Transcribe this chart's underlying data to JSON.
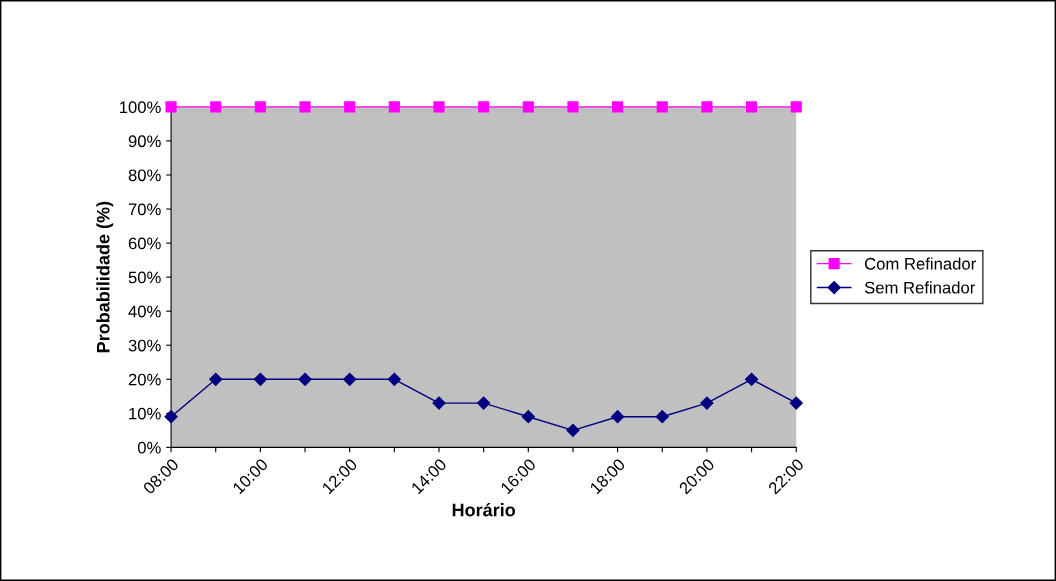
{
  "chart_data": {
    "type": "line",
    "xlabel": "Horário",
    "ylabel": "Probabilidade (%)",
    "categories": [
      "08:00",
      null,
      "10:00",
      null,
      "12:00",
      null,
      "14:00",
      null,
      "16:00",
      null,
      "18:00",
      null,
      "20:00",
      null,
      "22:00"
    ],
    "series": [
      {
        "name": "Com Refinador",
        "color": "#ff00ff",
        "marker": "square",
        "values": [
          100,
          100,
          100,
          100,
          100,
          100,
          100,
          100,
          100,
          100,
          100,
          100,
          100,
          100,
          100
        ]
      },
      {
        "name": "Sem Refinador",
        "color": "#000080",
        "marker": "diamond",
        "values": [
          9,
          20,
          20,
          20,
          20,
          20,
          13,
          13,
          9,
          5,
          9,
          9,
          13,
          20,
          13
        ]
      }
    ],
    "ylim": [
      0,
      100
    ],
    "yticks": [
      {
        "value": 0,
        "label": "0%"
      },
      {
        "value": 10,
        "label": "10%"
      },
      {
        "value": 20,
        "label": "20%"
      },
      {
        "value": 30,
        "label": "30%"
      },
      {
        "value": 40,
        "label": "40%"
      },
      {
        "value": 50,
        "label": "50%"
      },
      {
        "value": 60,
        "label": "60%"
      },
      {
        "value": 70,
        "label": "70%"
      },
      {
        "value": 80,
        "label": "80%"
      },
      {
        "value": 90,
        "label": "90%"
      },
      {
        "value": 100,
        "label": "100%"
      }
    ],
    "grid": false,
    "legend": "right",
    "line_style": "solid"
  }
}
